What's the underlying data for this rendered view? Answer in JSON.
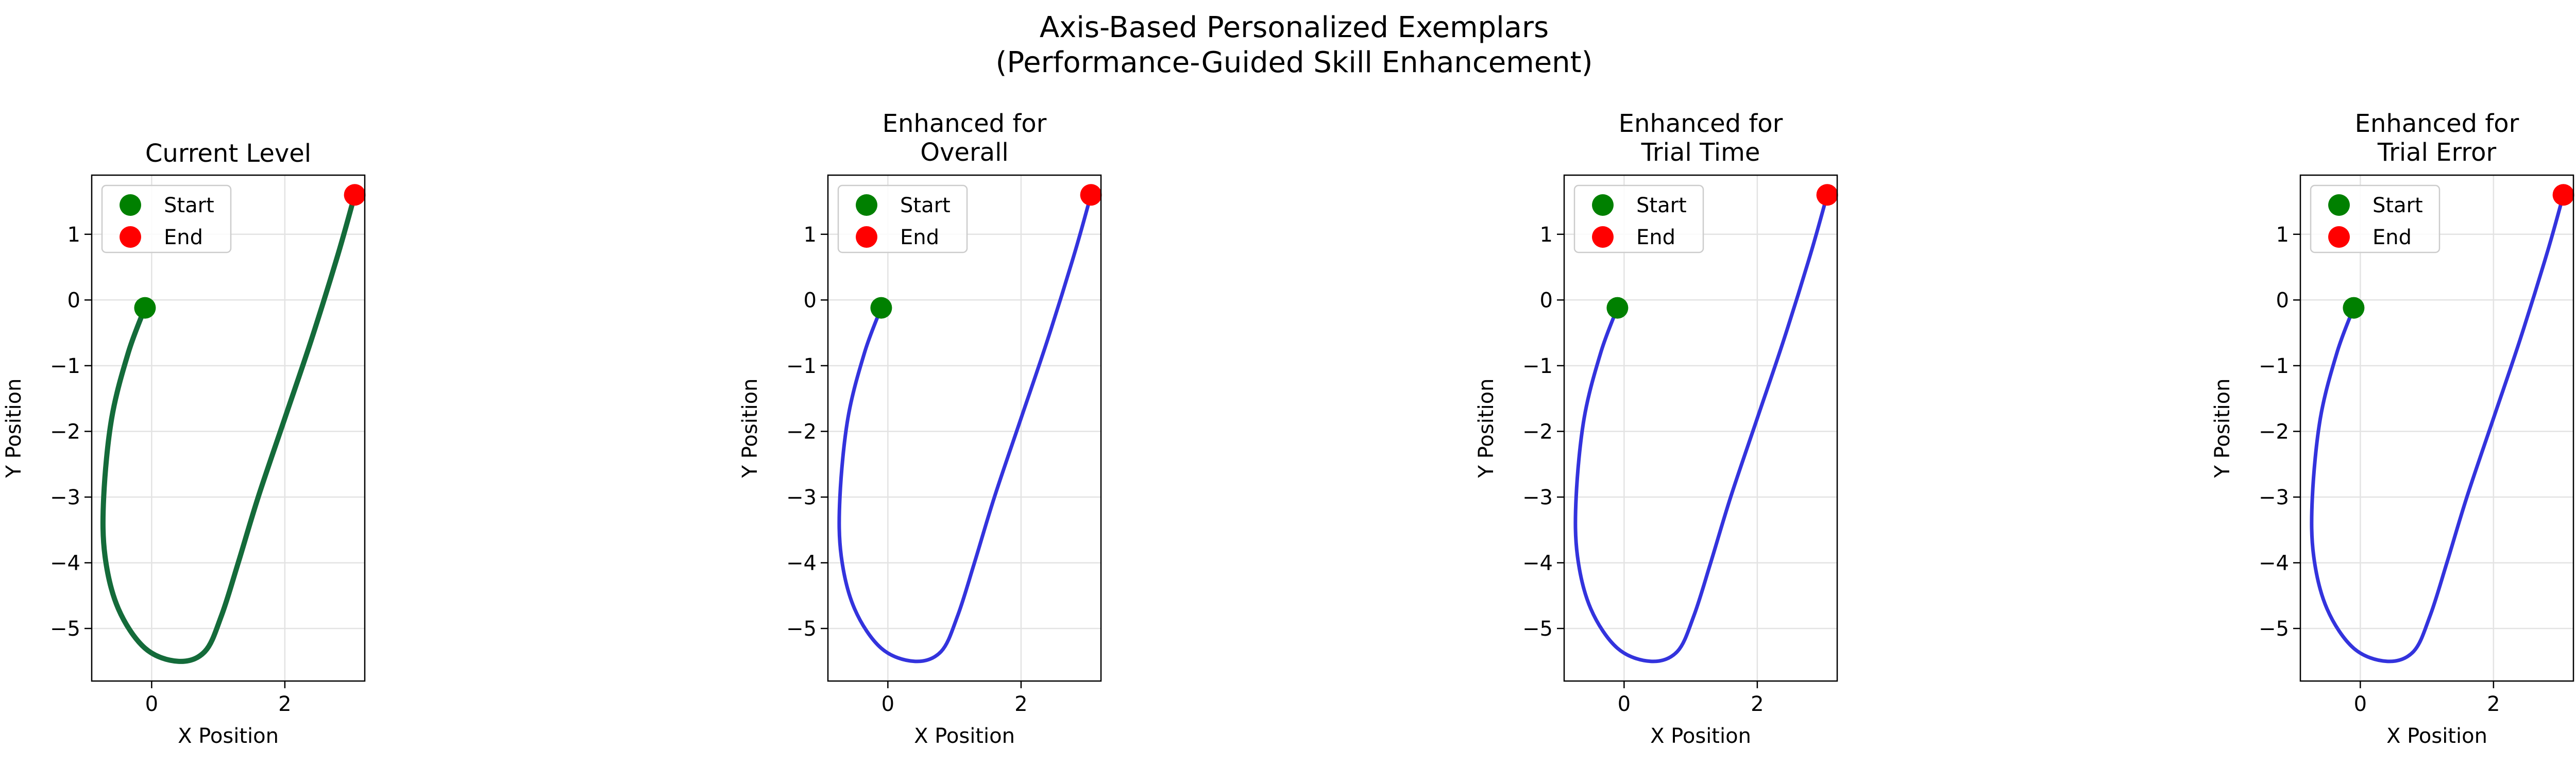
{
  "figure": {
    "title_line1": "Axis-Based Personalized Exemplars",
    "title_line2": "(Performance-Guided Skill Enhancement)"
  },
  "chart_data": [
    {
      "type": "line",
      "title": [
        "Current Level"
      ],
      "xlabel": "X Position",
      "ylabel": "Y Position",
      "xlim": [
        -0.9,
        3.2
      ],
      "ylim": [
        -5.8,
        1.9
      ],
      "xticks": [
        0,
        2
      ],
      "yticks": [
        1,
        0,
        -1,
        -2,
        -3,
        -4,
        -5
      ],
      "grid": true,
      "line_color": "#146b3a",
      "series": [
        {
          "x": [
            -0.1,
            -0.35,
            -0.6,
            -0.72,
            -0.7,
            -0.5,
            -0.1,
            0.4,
            0.8,
            1.05,
            1.3,
            1.6,
            2.0,
            2.4,
            2.8,
            3.05
          ],
          "y": [
            -0.12,
            -0.8,
            -1.8,
            -3.0,
            -3.9,
            -4.7,
            -5.3,
            -5.5,
            -5.35,
            -4.8,
            -4.0,
            -3.0,
            -1.8,
            -0.6,
            0.7,
            1.6
          ]
        }
      ],
      "markers": [
        {
          "label": "Start",
          "x": -0.1,
          "y": -0.12,
          "color": "#008000"
        },
        {
          "label": "End",
          "x": 3.05,
          "y": 1.6,
          "color": "#ff0000"
        }
      ],
      "legend": {
        "position": "upper-left",
        "entries": [
          "Start",
          "End"
        ]
      }
    },
    {
      "type": "line",
      "title": [
        "Enhanced for",
        "Overall"
      ],
      "xlabel": "X Position",
      "ylabel": "Y Position",
      "xlim": [
        -0.9,
        3.2
      ],
      "ylim": [
        -5.8,
        1.9
      ],
      "xticks": [
        0,
        2
      ],
      "yticks": [
        1,
        0,
        -1,
        -2,
        -3,
        -4,
        -5
      ],
      "grid": true,
      "line_color": "#3333dd",
      "series": [
        {
          "x": [
            -0.1,
            -0.35,
            -0.6,
            -0.72,
            -0.7,
            -0.5,
            -0.1,
            0.4,
            0.8,
            1.05,
            1.3,
            1.6,
            2.0,
            2.4,
            2.8,
            3.05
          ],
          "y": [
            -0.12,
            -0.8,
            -1.8,
            -3.0,
            -3.9,
            -4.7,
            -5.3,
            -5.5,
            -5.35,
            -4.8,
            -4.0,
            -3.0,
            -1.8,
            -0.6,
            0.7,
            1.6
          ]
        }
      ],
      "markers": [
        {
          "label": "Start",
          "x": -0.1,
          "y": -0.12,
          "color": "#008000"
        },
        {
          "label": "End",
          "x": 3.05,
          "y": 1.6,
          "color": "#ff0000"
        }
      ],
      "legend": {
        "position": "upper-left",
        "entries": [
          "Start",
          "End"
        ]
      }
    },
    {
      "type": "line",
      "title": [
        "Enhanced for",
        "Trial Time"
      ],
      "xlabel": "X Position",
      "ylabel": "Y Position",
      "xlim": [
        -0.9,
        3.2
      ],
      "ylim": [
        -5.8,
        1.9
      ],
      "xticks": [
        0,
        2
      ],
      "yticks": [
        1,
        0,
        -1,
        -2,
        -3,
        -4,
        -5
      ],
      "grid": true,
      "line_color": "#3333dd",
      "series": [
        {
          "x": [
            -0.1,
            -0.35,
            -0.6,
            -0.72,
            -0.7,
            -0.5,
            -0.1,
            0.4,
            0.8,
            1.05,
            1.3,
            1.6,
            2.0,
            2.4,
            2.8,
            3.05
          ],
          "y": [
            -0.12,
            -0.8,
            -1.8,
            -3.0,
            -3.9,
            -4.7,
            -5.3,
            -5.5,
            -5.35,
            -4.8,
            -4.0,
            -3.0,
            -1.8,
            -0.6,
            0.7,
            1.6
          ]
        }
      ],
      "markers": [
        {
          "label": "Start",
          "x": -0.1,
          "y": -0.12,
          "color": "#008000"
        },
        {
          "label": "End",
          "x": 3.05,
          "y": 1.6,
          "color": "#ff0000"
        }
      ],
      "legend": {
        "position": "upper-left",
        "entries": [
          "Start",
          "End"
        ]
      }
    },
    {
      "type": "line",
      "title": [
        "Enhanced for",
        "Trial Error"
      ],
      "xlabel": "X Position",
      "ylabel": "Y Position",
      "xlim": [
        -0.9,
        3.2
      ],
      "ylim": [
        -5.8,
        1.9
      ],
      "xticks": [
        0,
        2
      ],
      "yticks": [
        1,
        0,
        -1,
        -2,
        -3,
        -4,
        -5
      ],
      "grid": true,
      "line_color": "#3333dd",
      "series": [
        {
          "x": [
            -0.1,
            -0.35,
            -0.6,
            -0.72,
            -0.7,
            -0.5,
            -0.1,
            0.4,
            0.8,
            1.05,
            1.3,
            1.6,
            2.0,
            2.4,
            2.8,
            3.05
          ],
          "y": [
            -0.12,
            -0.8,
            -1.8,
            -3.0,
            -3.9,
            -4.7,
            -5.3,
            -5.5,
            -5.35,
            -4.8,
            -4.0,
            -3.0,
            -1.8,
            -0.6,
            0.7,
            1.6
          ]
        }
      ],
      "markers": [
        {
          "label": "Start",
          "x": -0.1,
          "y": -0.12,
          "color": "#008000"
        },
        {
          "label": "End",
          "x": 3.05,
          "y": 1.6,
          "color": "#ff0000"
        }
      ],
      "legend": {
        "position": "upper-left",
        "entries": [
          "Start",
          "End"
        ]
      }
    }
  ]
}
